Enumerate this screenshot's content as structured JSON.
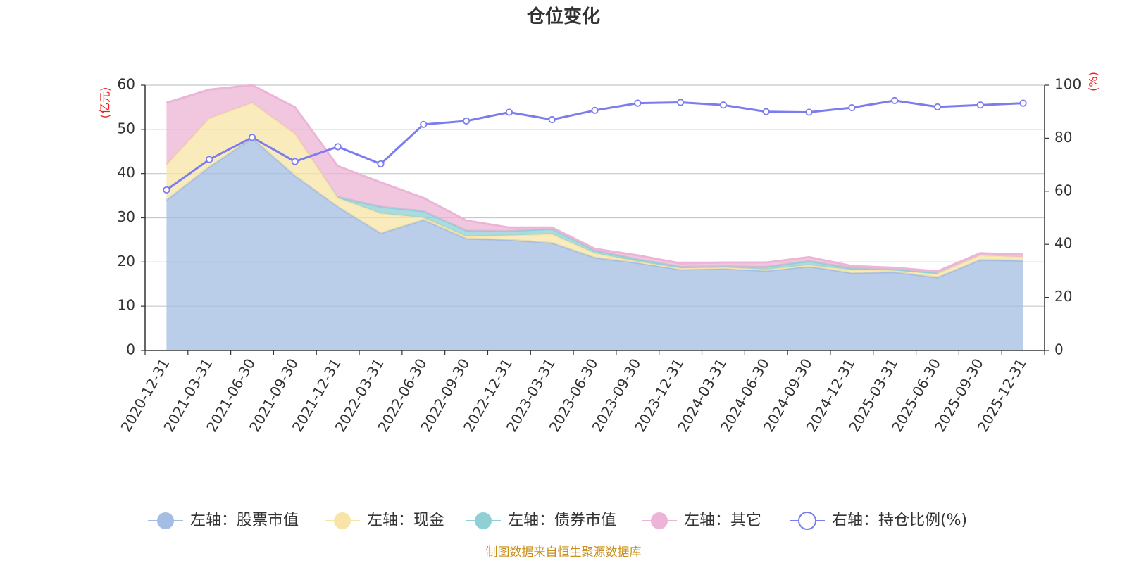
{
  "chart_data": {
    "type": "area",
    "title": "仓位变化",
    "left_axis_unit": "(亿元)",
    "right_axis_unit": "(%)",
    "ylim_left": [
      0,
      60
    ],
    "yticks_left": [
      0,
      10,
      20,
      30,
      40,
      50,
      60
    ],
    "ylim_right": [
      0,
      100
    ],
    "yticks_right": [
      0,
      20,
      40,
      60,
      80,
      100
    ],
    "categories": [
      "2020-12-31",
      "2021-03-31",
      "2021-06-30",
      "2021-09-30",
      "2021-12-31",
      "2022-03-31",
      "2022-06-30",
      "2022-09-30",
      "2022-12-31",
      "2023-03-31",
      "2023-06-30",
      "2023-09-30",
      "2023-12-31",
      "2024-03-31",
      "2024-06-30",
      "2024-09-30",
      "2024-12-31",
      "2025-03-31",
      "2025-06-30",
      "2025-09-30",
      "2025-12-31"
    ],
    "series": [
      {
        "name": "左轴：股票市值",
        "axis": "left",
        "kind": "stacked-area",
        "color": "#a3bde3",
        "values": [
          34.0,
          41.5,
          48.0,
          39.5,
          32.5,
          26.5,
          29.5,
          25.3,
          25.0,
          24.3,
          21.0,
          19.8,
          18.3,
          18.5,
          18.0,
          19.0,
          17.5,
          17.7,
          16.5,
          20.5,
          20.3
        ]
      },
      {
        "name": "左轴：现金",
        "axis": "left",
        "kind": "stacked-area",
        "color": "#f7e4a6",
        "values": [
          8.0,
          11.0,
          8.0,
          9.5,
          2.0,
          4.5,
          0.5,
          0.5,
          1.0,
          2.0,
          1.0,
          0.3,
          0.3,
          0.3,
          0.3,
          0.3,
          0.7,
          0.5,
          0.9,
          1.0,
          0.8
        ]
      },
      {
        "name": "左轴：债券市值",
        "axis": "left",
        "kind": "stacked-area",
        "color": "#8fcfd6",
        "values": [
          0,
          0,
          0,
          0,
          0.2,
          1.5,
          1.5,
          1.3,
          1.0,
          1.2,
          0.6,
          0.5,
          0.3,
          0.2,
          0.6,
          0.9,
          0.4,
          0.1,
          0.1,
          0,
          0
        ]
      },
      {
        "name": "左轴：其它",
        "axis": "left",
        "kind": "stacked-area",
        "color": "#ecb4d6",
        "values": [
          14.0,
          6.5,
          4.0,
          6.0,
          7.0,
          5.5,
          3.0,
          2.3,
          0.8,
          0.3,
          0.4,
          0.9,
          0.8,
          0.9,
          1.0,
          0.9,
          0.5,
          0.4,
          0.4,
          0.5,
          0.6
        ]
      },
      {
        "name": "右轴：持仓比例(%)",
        "axis": "right",
        "kind": "line",
        "color": "#7b7cee",
        "values": [
          60.5,
          72.0,
          80.3,
          71.2,
          76.8,
          70.3,
          85.2,
          86.5,
          89.8,
          87.0,
          90.5,
          93.2,
          93.5,
          92.5,
          90.0,
          89.8,
          91.5,
          94.2,
          91.8,
          92.5,
          93.2
        ]
      }
    ],
    "legend_position": "bottom"
  },
  "source_note": "制图数据来自恒生聚源数据库"
}
